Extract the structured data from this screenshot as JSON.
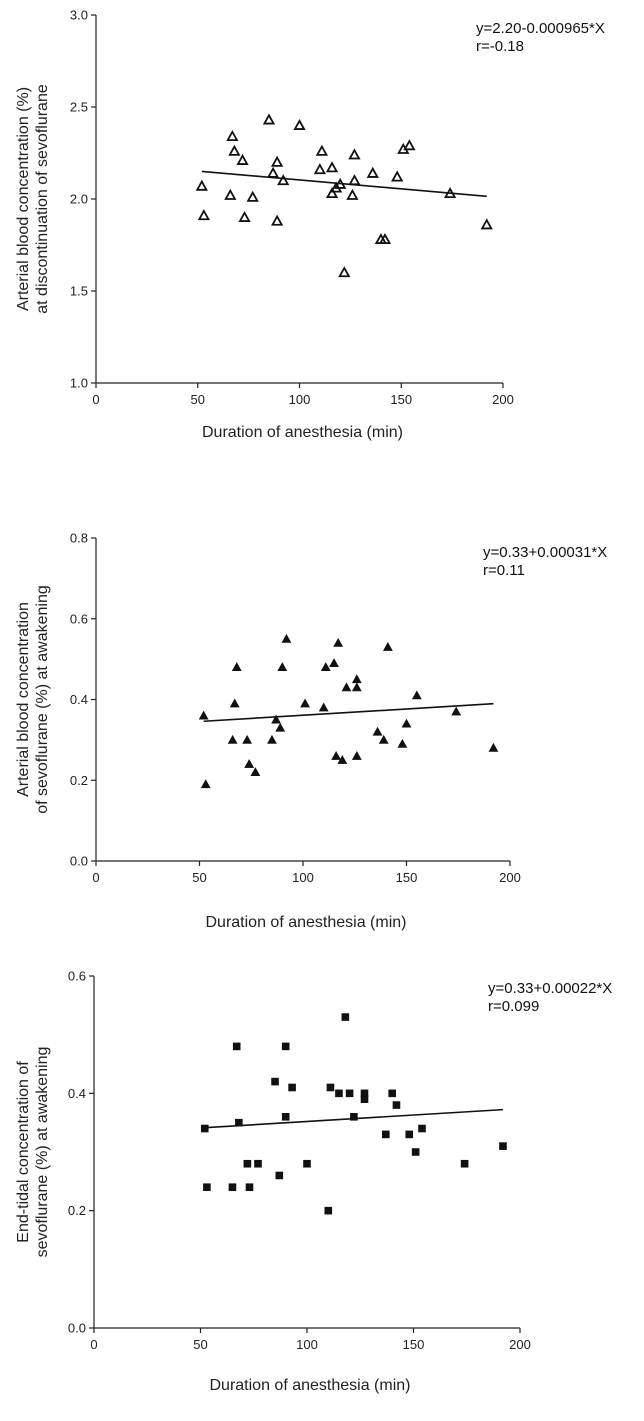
{
  "chart_data": [
    {
      "type": "scatter",
      "xlabel": "Duration of anesthesia (min)",
      "ylabel": [
        "Arterial blood concentration (%)",
        "at discontinuation of sevoflurane"
      ],
      "xlim": [
        0,
        200
      ],
      "ylim": [
        1.0,
        3.0
      ],
      "xticks": [
        "0",
        "50",
        "100",
        "150",
        "200"
      ],
      "yticks": [
        "1.0",
        "1.5",
        "2.0",
        "2.5",
        "3.0"
      ],
      "marker": "open-triangle",
      "annotation": [
        "y=2.20-0.000965*X",
        "r=-0.18"
      ],
      "fit": {
        "intercept": 2.2,
        "slope": -0.000965,
        "x_range": [
          52,
          192
        ]
      },
      "points": [
        [
          52,
          2.07
        ],
        [
          53,
          1.91
        ],
        [
          66,
          2.02
        ],
        [
          67,
          2.34
        ],
        [
          68,
          2.26
        ],
        [
          72,
          2.21
        ],
        [
          73,
          1.9
        ],
        [
          77,
          2.01
        ],
        [
          85,
          2.43
        ],
        [
          87,
          2.14
        ],
        [
          89,
          1.88
        ],
        [
          89,
          2.2
        ],
        [
          92,
          2.1
        ],
        [
          100,
          2.4
        ],
        [
          110,
          2.16
        ],
        [
          111,
          2.26
        ],
        [
          116,
          2.03
        ],
        [
          116,
          2.17
        ],
        [
          118,
          2.06
        ],
        [
          120,
          2.08
        ],
        [
          126,
          2.02
        ],
        [
          127,
          2.1
        ],
        [
          127,
          2.24
        ],
        [
          122,
          1.6
        ],
        [
          136,
          2.14
        ],
        [
          140,
          1.78
        ],
        [
          142,
          1.78
        ],
        [
          148,
          2.12
        ],
        [
          151,
          2.27
        ],
        [
          154,
          2.29
        ],
        [
          174,
          2.03
        ],
        [
          192,
          1.86
        ]
      ]
    },
    {
      "type": "scatter",
      "xlabel": "Duration of anesthesia (min)",
      "ylabel": [
        "Arterial blood concentration",
        "of sevoflurane (%) at awakening"
      ],
      "xlim": [
        0,
        200
      ],
      "ylim": [
        0.0,
        0.8
      ],
      "xticks": [
        "0",
        "50",
        "100",
        "150",
        "200"
      ],
      "yticks": [
        "0.0",
        "0.2",
        "0.4",
        "0.6",
        "0.8"
      ],
      "marker": "filled-triangle",
      "annotation": [
        "y=0.33+0.00031*X",
        "r=0.11"
      ],
      "fit": {
        "intercept": 0.33,
        "slope": 0.00031,
        "x_range": [
          52,
          192
        ]
      },
      "points": [
        [
          52,
          0.36
        ],
        [
          53,
          0.19
        ],
        [
          66,
          0.3
        ],
        [
          67,
          0.39
        ],
        [
          68,
          0.48
        ],
        [
          73,
          0.3
        ],
        [
          74,
          0.24
        ],
        [
          77,
          0.22
        ],
        [
          85,
          0.3
        ],
        [
          87,
          0.35
        ],
        [
          89,
          0.33
        ],
        [
          90,
          0.48
        ],
        [
          92,
          0.55
        ],
        [
          101,
          0.39
        ],
        [
          110,
          0.38
        ],
        [
          111,
          0.48
        ],
        [
          115,
          0.49
        ],
        [
          116,
          0.26
        ],
        [
          117,
          0.54
        ],
        [
          119,
          0.25
        ],
        [
          121,
          0.43
        ],
        [
          126,
          0.43
        ],
        [
          126,
          0.45
        ],
        [
          126,
          0.26
        ],
        [
          136,
          0.32
        ],
        [
          139,
          0.3
        ],
        [
          141,
          0.53
        ],
        [
          148,
          0.29
        ],
        [
          150,
          0.34
        ],
        [
          155,
          0.41
        ],
        [
          174,
          0.37
        ],
        [
          192,
          0.28
        ]
      ]
    },
    {
      "type": "scatter",
      "xlabel": "Duration of anesthesia (min)",
      "ylabel": [
        "End-tidal concentration of",
        "sevoflurane (%) at awakening"
      ],
      "xlim": [
        0,
        200
      ],
      "ylim": [
        0.0,
        0.6
      ],
      "xticks": [
        "0",
        "50",
        "100",
        "150",
        "200"
      ],
      "yticks": [
        "0.0",
        "0.2",
        "0.4",
        "0.6"
      ],
      "marker": "filled-square",
      "annotation": [
        "y=0.33+0.00022*X",
        "r=0.099"
      ],
      "fit": {
        "intercept": 0.33,
        "slope": 0.00022,
        "x_range": [
          52,
          192
        ]
      },
      "points": [
        [
          52,
          0.34
        ],
        [
          53,
          0.24
        ],
        [
          65,
          0.24
        ],
        [
          67,
          0.48
        ],
        [
          68,
          0.35
        ],
        [
          72,
          0.28
        ],
        [
          73,
          0.24
        ],
        [
          77,
          0.28
        ],
        [
          85,
          0.42
        ],
        [
          87,
          0.26
        ],
        [
          90,
          0.48
        ],
        [
          90,
          0.36
        ],
        [
          93,
          0.41
        ],
        [
          100,
          0.28
        ],
        [
          110,
          0.2
        ],
        [
          111,
          0.41
        ],
        [
          115,
          0.4
        ],
        [
          118,
          0.53
        ],
        [
          120,
          0.4
        ],
        [
          122,
          0.36
        ],
        [
          127,
          0.4
        ],
        [
          127,
          0.39
        ],
        [
          137,
          0.33
        ],
        [
          140,
          0.4
        ],
        [
          142,
          0.38
        ],
        [
          148,
          0.33
        ],
        [
          151,
          0.3
        ],
        [
          154,
          0.34
        ],
        [
          174,
          0.28
        ],
        [
          192,
          0.31
        ]
      ]
    }
  ]
}
